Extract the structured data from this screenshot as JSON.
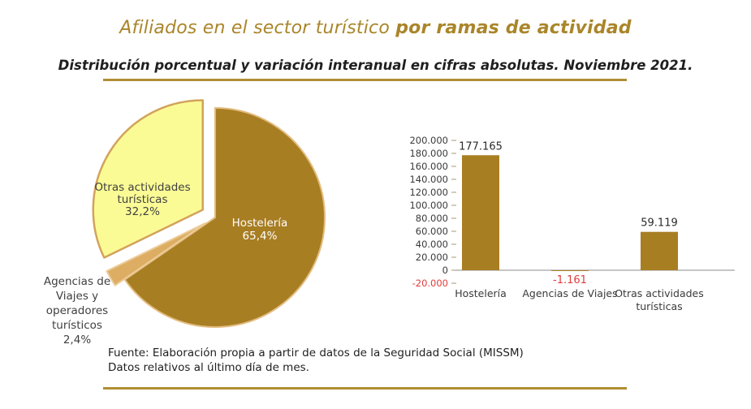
{
  "header": {
    "title_regular": "Afiliados en el sector turístico ",
    "title_bold": "por ramas de actividad",
    "subtitle": "Distribución porcentual y variación interanual en cifras absolutas. Noviembre 2021."
  },
  "footer": {
    "line1": "Fuente: Elaboración propia a partir de datos de la Seguridad Social (MISSM)",
    "line2": "Datos relativos al último día de mes."
  },
  "colors": {
    "accent_gold": "#AA8529",
    "rule_gold": "#B08E33",
    "bar_brown": "#A87E23",
    "negative_red": "#E03B3B",
    "axis_gray": "#8C8C8C",
    "tick_gray": "#A89A74",
    "dark_text": "#2B2B2B"
  },
  "chart_data": [
    {
      "type": "pie",
      "name": "Distribución porcentual de afiliados por ramas",
      "slices": [
        {
          "label": "Hostelería",
          "value_pct": 65.4,
          "display": "Hostelería\n65,4%",
          "color": "#A87E23",
          "border": "#E2BB7D",
          "text_color": "#FFFFFF",
          "exploded": false
        },
        {
          "label": "Agencias de Viajes y operadores turísticos",
          "value_pct": 2.4,
          "display": "Agencias de\nViajes y\noperadores\nturísticos\n2,4%",
          "color": "#DCAD62",
          "border": "#ECCA96",
          "text_color": "#404040",
          "exploded": true
        },
        {
          "label": "Otras actividades turísticas",
          "value_pct": 32.2,
          "display": "Otras actividades\nturísticas\n32,2%",
          "color": "#FBFB96",
          "border": "#D2A35B",
          "text_color": "#404040",
          "exploded": true
        }
      ]
    },
    {
      "type": "bar",
      "name": "Variación interanual en cifras absolutas",
      "categories": [
        "Hostelería",
        "Agencias de Viajes",
        "Otras actividades turísticas"
      ],
      "values": [
        177165,
        -1161,
        59119
      ],
      "value_labels": [
        "177.165",
        "-1.161",
        "59.119"
      ],
      "ylim": [
        -20000,
        200000
      ],
      "bar_color": "#A87E23",
      "negative_label_color": "#E03B3B",
      "grid": false,
      "legend": "none",
      "y_ticks": [
        {
          "value": 200000,
          "label": "200.000"
        },
        {
          "value": 180000,
          "label": "180.000"
        },
        {
          "value": 160000,
          "label": "160.000"
        },
        {
          "value": 140000,
          "label": "140.000"
        },
        {
          "value": 120000,
          "label": "120.000"
        },
        {
          "value": 100000,
          "label": "100.000"
        },
        {
          "value": 80000,
          "label": "80.000"
        },
        {
          "value": 60000,
          "label": "60.000"
        },
        {
          "value": 40000,
          "label": "40.000"
        },
        {
          "value": 20000,
          "label": "20.000"
        },
        {
          "value": 0,
          "label": "0"
        },
        {
          "value": -20000,
          "label": "-20.000"
        }
      ]
    }
  ]
}
